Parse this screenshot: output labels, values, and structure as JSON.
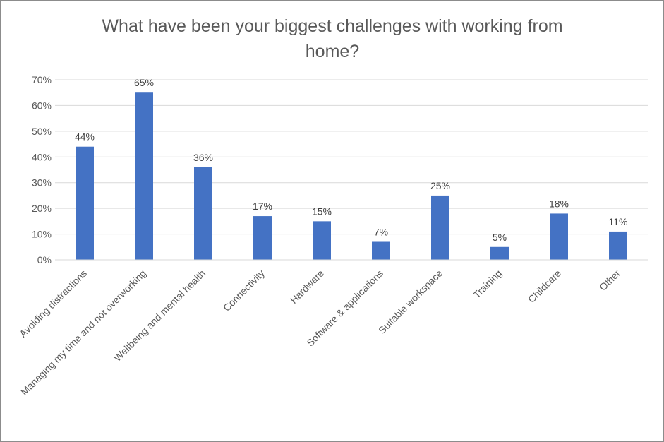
{
  "chart_data": {
    "type": "bar",
    "title_lines": [
      "What have been your biggest challenges with working from",
      "home?"
    ],
    "title": "What have been your biggest challenges with working from home?",
    "categories": [
      "Avoiding distractions",
      "Managing my time and not overworking",
      "Wellbeing and mental health",
      "Connectivity",
      "Hardware",
      "Software & applications",
      "Suitable workspace",
      "Training",
      "Childcare",
      "Other"
    ],
    "values": [
      44,
      65,
      36,
      17,
      15,
      7,
      25,
      5,
      18,
      11
    ],
    "data_labels": [
      "44%",
      "65%",
      "36%",
      "17%",
      "15%",
      "7%",
      "25%",
      "5%",
      "18%",
      "11%"
    ],
    "y_ticks": [
      0,
      10,
      20,
      30,
      40,
      50,
      60,
      70
    ],
    "y_tick_labels": [
      "0%",
      "10%",
      "20%",
      "30%",
      "40%",
      "50%",
      "60%",
      "70%"
    ],
    "ylim": [
      0,
      70
    ],
    "grid": true,
    "legend": "none",
    "bar_color": "#4472c4",
    "grid_color": "#d9d9d9",
    "text_color": "#595959"
  }
}
